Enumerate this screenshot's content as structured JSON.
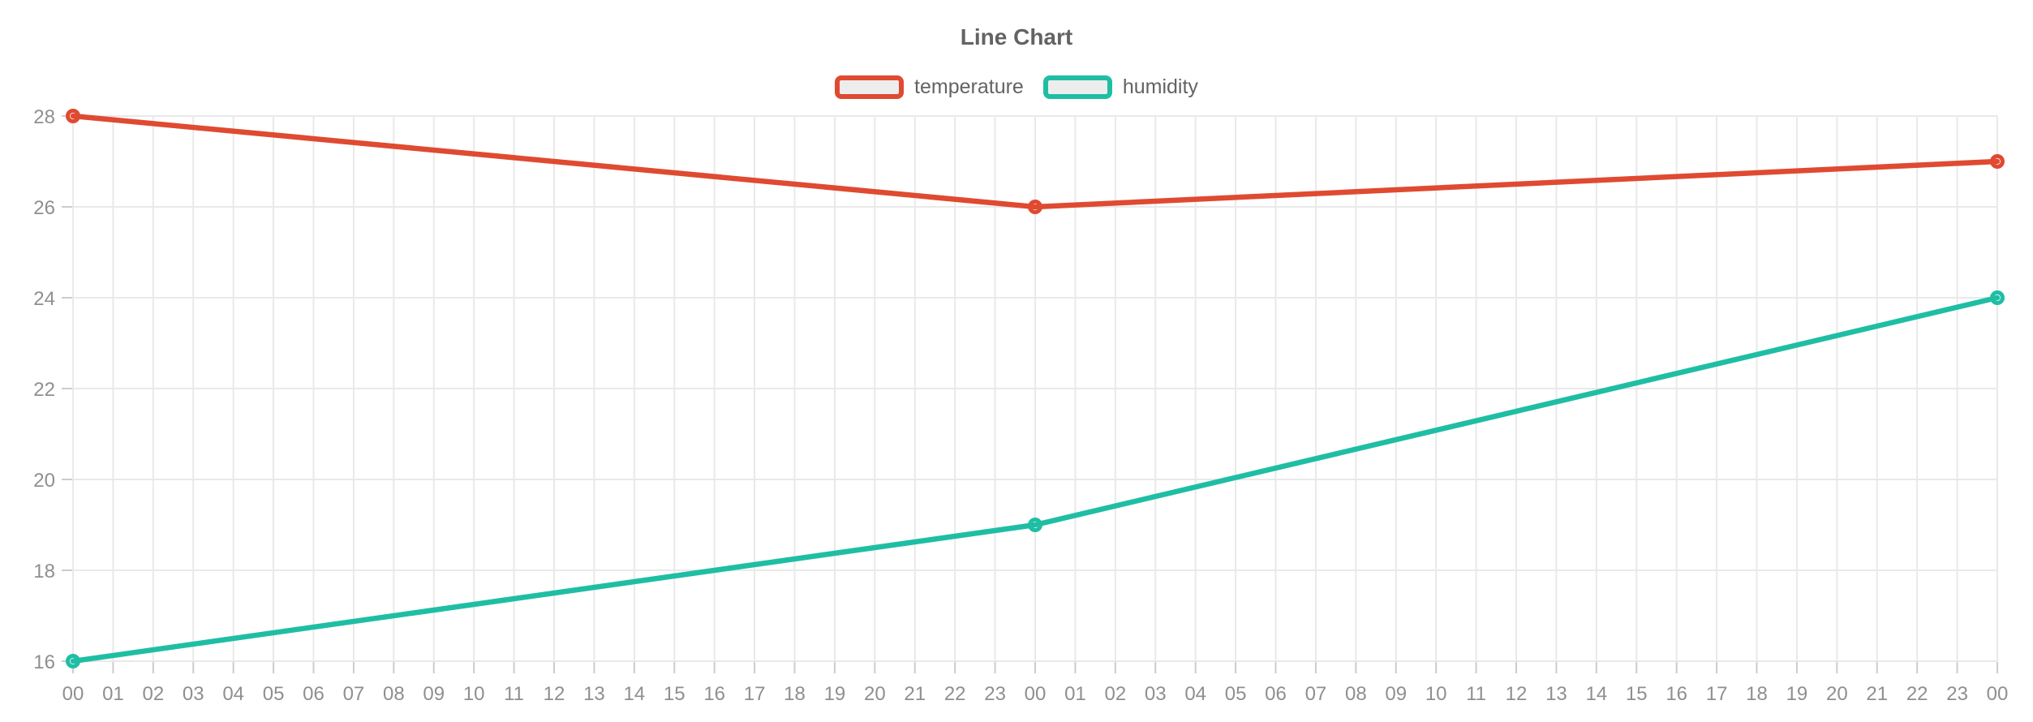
{
  "chart_data": {
    "type": "line",
    "title": "Line Chart",
    "legend_position": "top-center",
    "grid": true,
    "x_axis": {
      "tick_labels": [
        "00",
        "01",
        "02",
        "03",
        "04",
        "05",
        "06",
        "07",
        "08",
        "09",
        "10",
        "11",
        "12",
        "13",
        "14",
        "15",
        "16",
        "17",
        "18",
        "19",
        "20",
        "21",
        "22",
        "23",
        "00",
        "01",
        "02",
        "03",
        "04",
        "05",
        "06",
        "07",
        "08",
        "09",
        "10",
        "11",
        "12",
        "13",
        "14",
        "15",
        "16",
        "17",
        "18",
        "19",
        "20",
        "21",
        "22",
        "23",
        "00"
      ]
    },
    "y_axis": {
      "min": 16,
      "max": 28,
      "tick_values": [
        16,
        18,
        20,
        22,
        24,
        26,
        28
      ],
      "tick_labels": [
        "16",
        "18",
        "20",
        "22",
        "24",
        "26",
        "28"
      ]
    },
    "series": [
      {
        "name": "temperature",
        "color": "#df4a31",
        "points": [
          {
            "x_index": 0,
            "x_label": "00",
            "value": 28
          },
          {
            "x_index": 24,
            "x_label": "00",
            "value": 26
          },
          {
            "x_index": 48,
            "x_label": "00",
            "value": 27
          }
        ]
      },
      {
        "name": "humidity",
        "color": "#1fbea4",
        "points": [
          {
            "x_index": 0,
            "x_label": "00",
            "value": 16
          },
          {
            "x_index": 24,
            "x_label": "00",
            "value": 19
          },
          {
            "x_index": 48,
            "x_label": "00",
            "value": 24
          }
        ]
      }
    ],
    "colors": {
      "background": "#ffffff",
      "grid_line": "#e9e9e9",
      "tick_mark": "#cccccc",
      "axis_label_text": "#8f8f8f",
      "title_text": "#636363",
      "legend_text": "#636363",
      "legend_swatch_fill": "#ededed",
      "point_fill": "#ffffff"
    }
  }
}
